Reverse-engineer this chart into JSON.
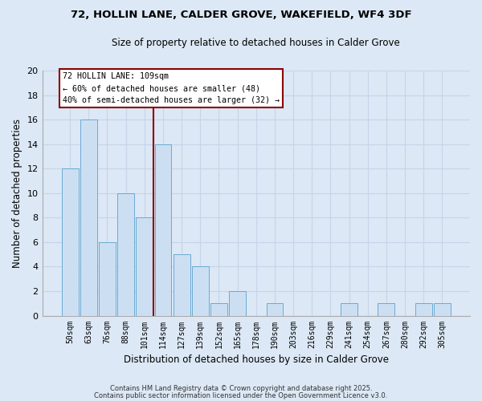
{
  "title": "72, HOLLIN LANE, CALDER GROVE, WAKEFIELD, WF4 3DF",
  "subtitle": "Size of property relative to detached houses in Calder Grove",
  "xlabel": "Distribution of detached houses by size in Calder Grove",
  "ylabel": "Number of detached properties",
  "bar_labels": [
    "50sqm",
    "63sqm",
    "76sqm",
    "88sqm",
    "101sqm",
    "114sqm",
    "127sqm",
    "139sqm",
    "152sqm",
    "165sqm",
    "178sqm",
    "190sqm",
    "203sqm",
    "216sqm",
    "229sqm",
    "241sqm",
    "254sqm",
    "267sqm",
    "280sqm",
    "292sqm",
    "305sqm"
  ],
  "bar_values": [
    12,
    16,
    6,
    10,
    8,
    14,
    5,
    4,
    1,
    2,
    0,
    1,
    0,
    0,
    0,
    1,
    0,
    1,
    0,
    1,
    1
  ],
  "bar_color": "#ccdff2",
  "bar_edge_color": "#6aaad4",
  "grid_color": "#c5d5e8",
  "background_color": "#dce8f5",
  "vline_color": "#8b0000",
  "annotation_title": "72 HOLLIN LANE: 109sqm",
  "annotation_line1": "← 60% of detached houses are smaller (48)",
  "annotation_line2": "40% of semi-detached houses are larger (32) →",
  "ylim": [
    0,
    20
  ],
  "yticks": [
    0,
    2,
    4,
    6,
    8,
    10,
    12,
    14,
    16,
    18,
    20
  ],
  "footer1": "Contains HM Land Registry data © Crown copyright and database right 2025.",
  "footer2": "Contains public sector information licensed under the Open Government Licence v3.0."
}
